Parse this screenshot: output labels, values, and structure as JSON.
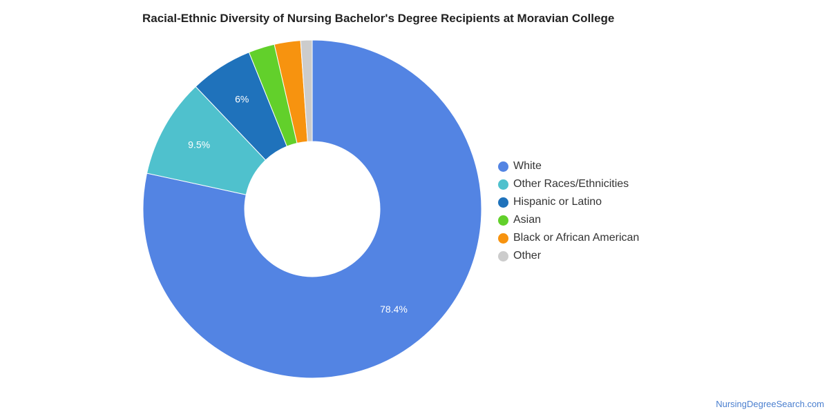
{
  "chart_data": {
    "type": "pie",
    "donut": true,
    "title": "Racial-Ethnic Diversity of Nursing Bachelor's Degree Recipients at Moravian College",
    "slices": [
      {
        "name": "White",
        "value": 78.4,
        "label": "78.4%",
        "color": "#5384e3"
      },
      {
        "name": "Other Races/Ethnicities",
        "value": 9.5,
        "label": "9.5%",
        "color": "#4fc1cd"
      },
      {
        "name": "Hispanic or Latino",
        "value": 6.0,
        "label": "6%",
        "color": "#1f72bb"
      },
      {
        "name": "Asian",
        "value": 2.5,
        "label": "",
        "color": "#62d02b"
      },
      {
        "name": "Black or African American",
        "value": 2.5,
        "label": "",
        "color": "#f7930f"
      },
      {
        "name": "Other",
        "value": 1.1,
        "label": "",
        "color": "#cccccc"
      }
    ],
    "legend_position": "right"
  },
  "footer": {
    "source": "NursingDegreeSearch.com"
  }
}
